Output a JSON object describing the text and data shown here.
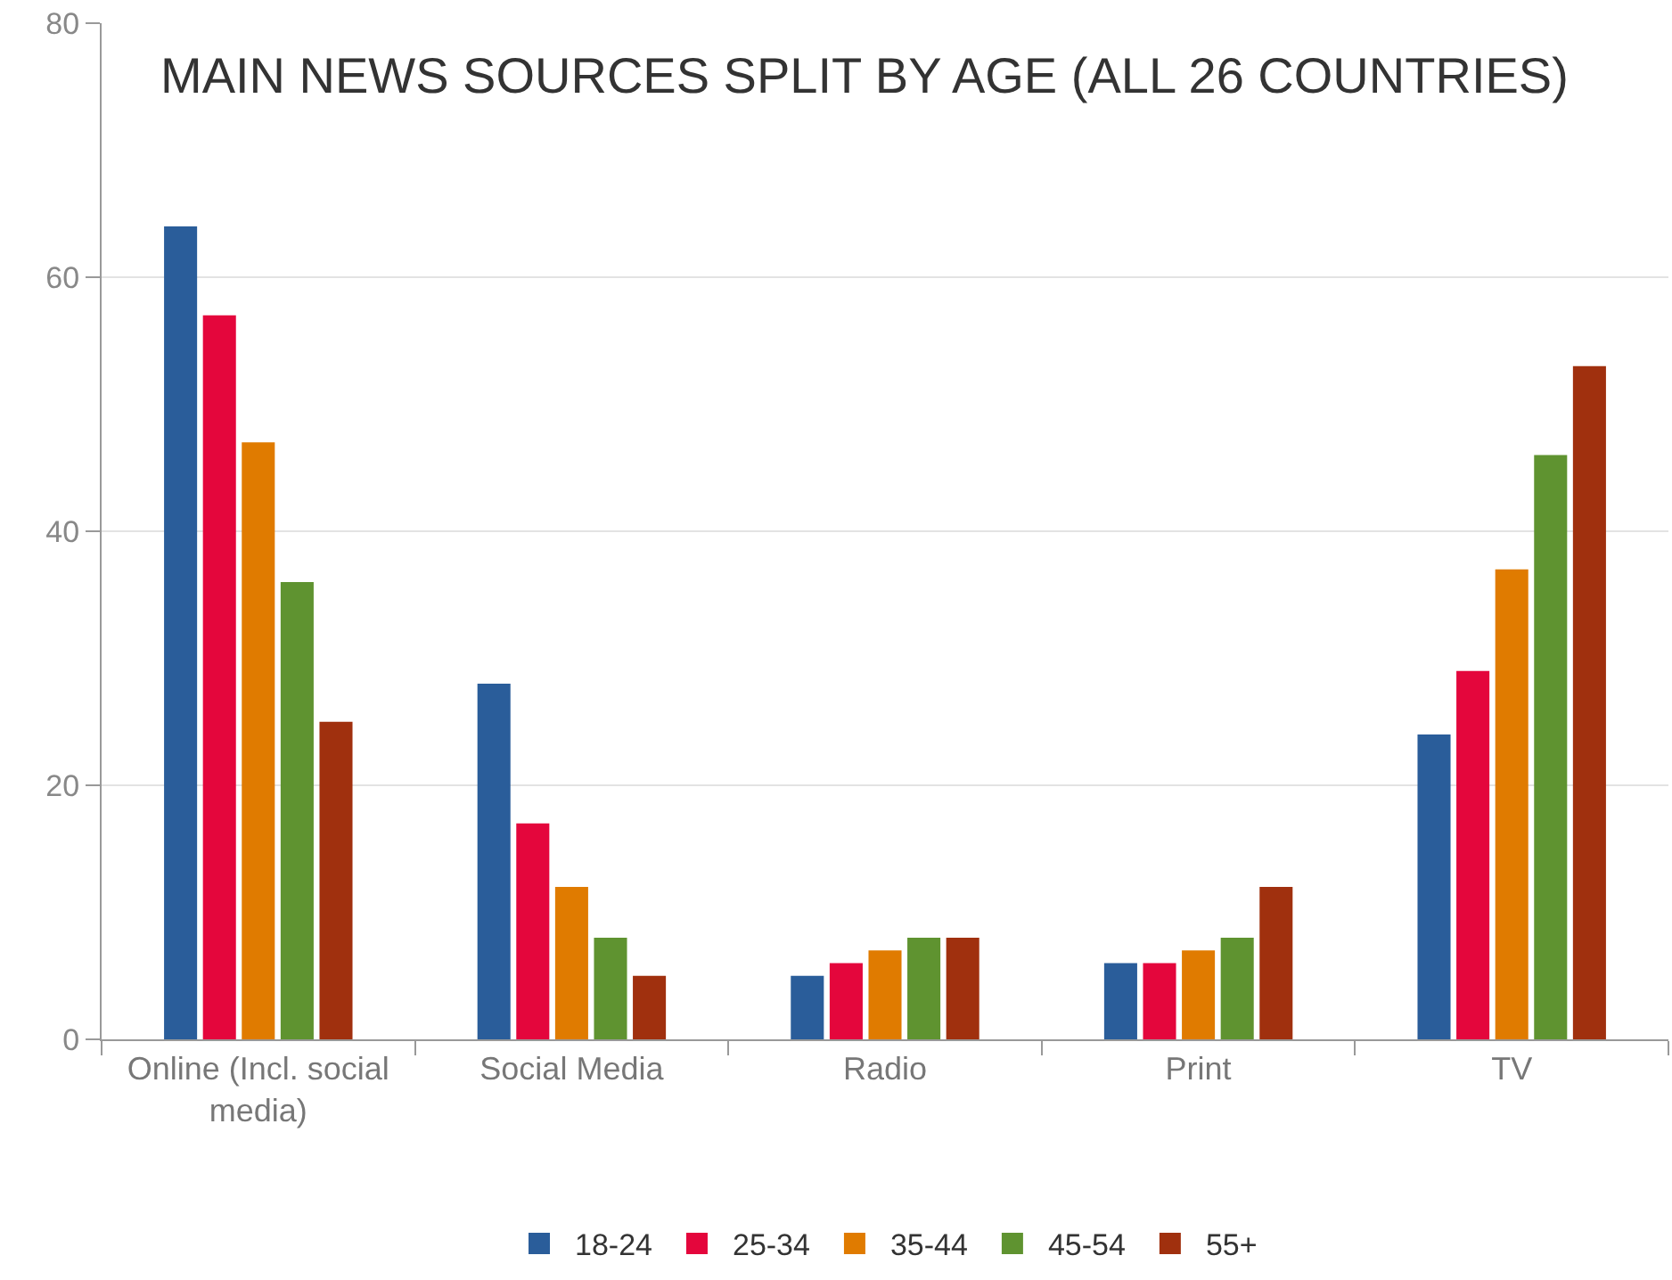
{
  "chart_data": {
    "type": "bar",
    "title": "MAIN NEWS SOURCES SPLIT BY AGE (ALL 26 COUNTRIES)",
    "categories": [
      "Online (Incl. social media)",
      "Social Media",
      "Radio",
      "Print",
      "TV"
    ],
    "series": [
      {
        "name": "18-24",
        "color": "#2a5d9a",
        "values": [
          64,
          28,
          5,
          6,
          24
        ]
      },
      {
        "name": "25-34",
        "color": "#e4063c",
        "values": [
          57,
          17,
          6,
          6,
          29
        ]
      },
      {
        "name": "35-44",
        "color": "#e07b00",
        "values": [
          47,
          12,
          7,
          7,
          37
        ]
      },
      {
        "name": "45-54",
        "color": "#5f9330",
        "values": [
          36,
          8,
          8,
          8,
          46
        ]
      },
      {
        "name": "55+",
        "color": "#a0300e",
        "values": [
          25,
          5,
          8,
          12,
          53
        ]
      }
    ],
    "ylim": [
      0,
      80
    ],
    "yticks": [
      0,
      20,
      40,
      60,
      80
    ],
    "grid": "y",
    "legend": "bottom"
  }
}
